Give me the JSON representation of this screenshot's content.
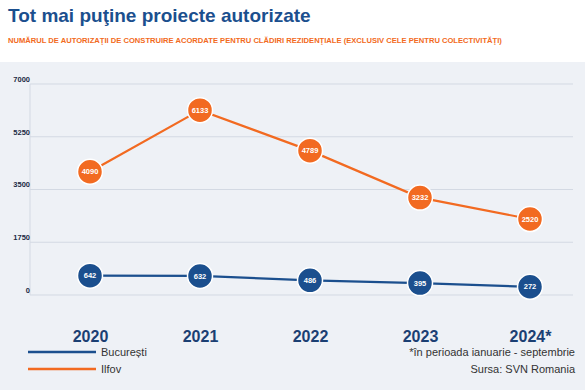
{
  "chart_data": {
    "type": "line",
    "title": "Tot mai puţine proiecte autorizate",
    "subtitle": "NUMĂRUL DE AUTORIZAŢII DE CONSTRUIRE ACORDATE PENTRU CLĂDIRI REZIDENŢIALE (EXCLUSIV CELE PENTRU COLECTIVITĂŢI)",
    "categories": [
      "2020",
      "2021",
      "2022",
      "2023",
      "2024*"
    ],
    "series": [
      {
        "name": "București",
        "color": "#1b4f8e",
        "marker": "circle",
        "values": [
          642,
          632,
          486,
          395,
          272
        ]
      },
      {
        "name": "Ilfov",
        "color": "#f26a21",
        "marker": "circle",
        "values": [
          4090,
          6133,
          4789,
          3232,
          2520
        ]
      }
    ],
    "ylim": [
      0,
      7000
    ],
    "yticks": [
      0,
      1750,
      3500,
      5250,
      7000
    ],
    "grid": true,
    "data_labels": true,
    "legend": "bottom-left",
    "annotations": [
      "*în perioada ianuarie - septembrie",
      "Sursa: SVN Romania"
    ]
  }
}
